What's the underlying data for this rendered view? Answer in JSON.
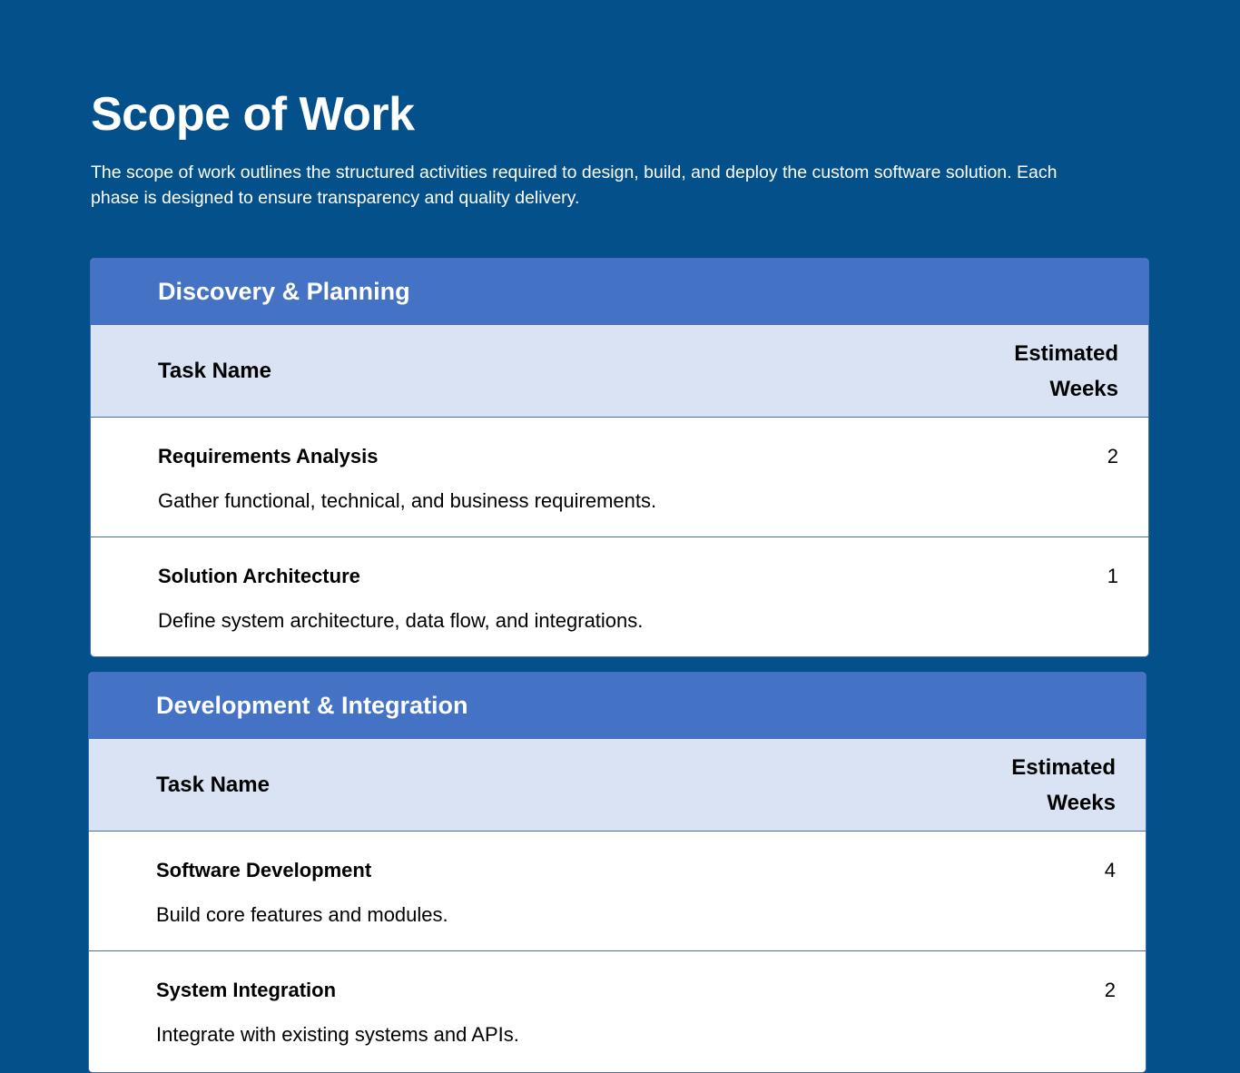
{
  "page": {
    "title": "Scope of Work",
    "intro": "The scope of work outlines the structured activities required to design, build, and deploy the custom software solution. Each phase is designed to ensure transparency and quality delivery."
  },
  "colors": {
    "background": "#03508a",
    "phase_header": "#4472c4",
    "column_header": "#dae3f3"
  },
  "phases": [
    {
      "name": "Discovery & Planning",
      "col_task": "Task Name",
      "col_weeks": "Estimated Weeks",
      "tasks": [
        {
          "name": "Requirements Analysis",
          "description": "Gather functional, technical, and business requirements.",
          "weeks": "2"
        },
        {
          "name": "Solution Architecture",
          "description": "Define system architecture, data flow, and integrations.",
          "weeks": "1"
        }
      ]
    },
    {
      "name": "Development & Integration",
      "col_task": "Task Name",
      "col_weeks": "Estimated Weeks",
      "tasks": [
        {
          "name": "Software Development",
          "description": "Build core features and modules.",
          "weeks": "4"
        },
        {
          "name": "System Integration",
          "description": "Integrate with existing systems and APIs.",
          "weeks": "2"
        }
      ]
    }
  ]
}
